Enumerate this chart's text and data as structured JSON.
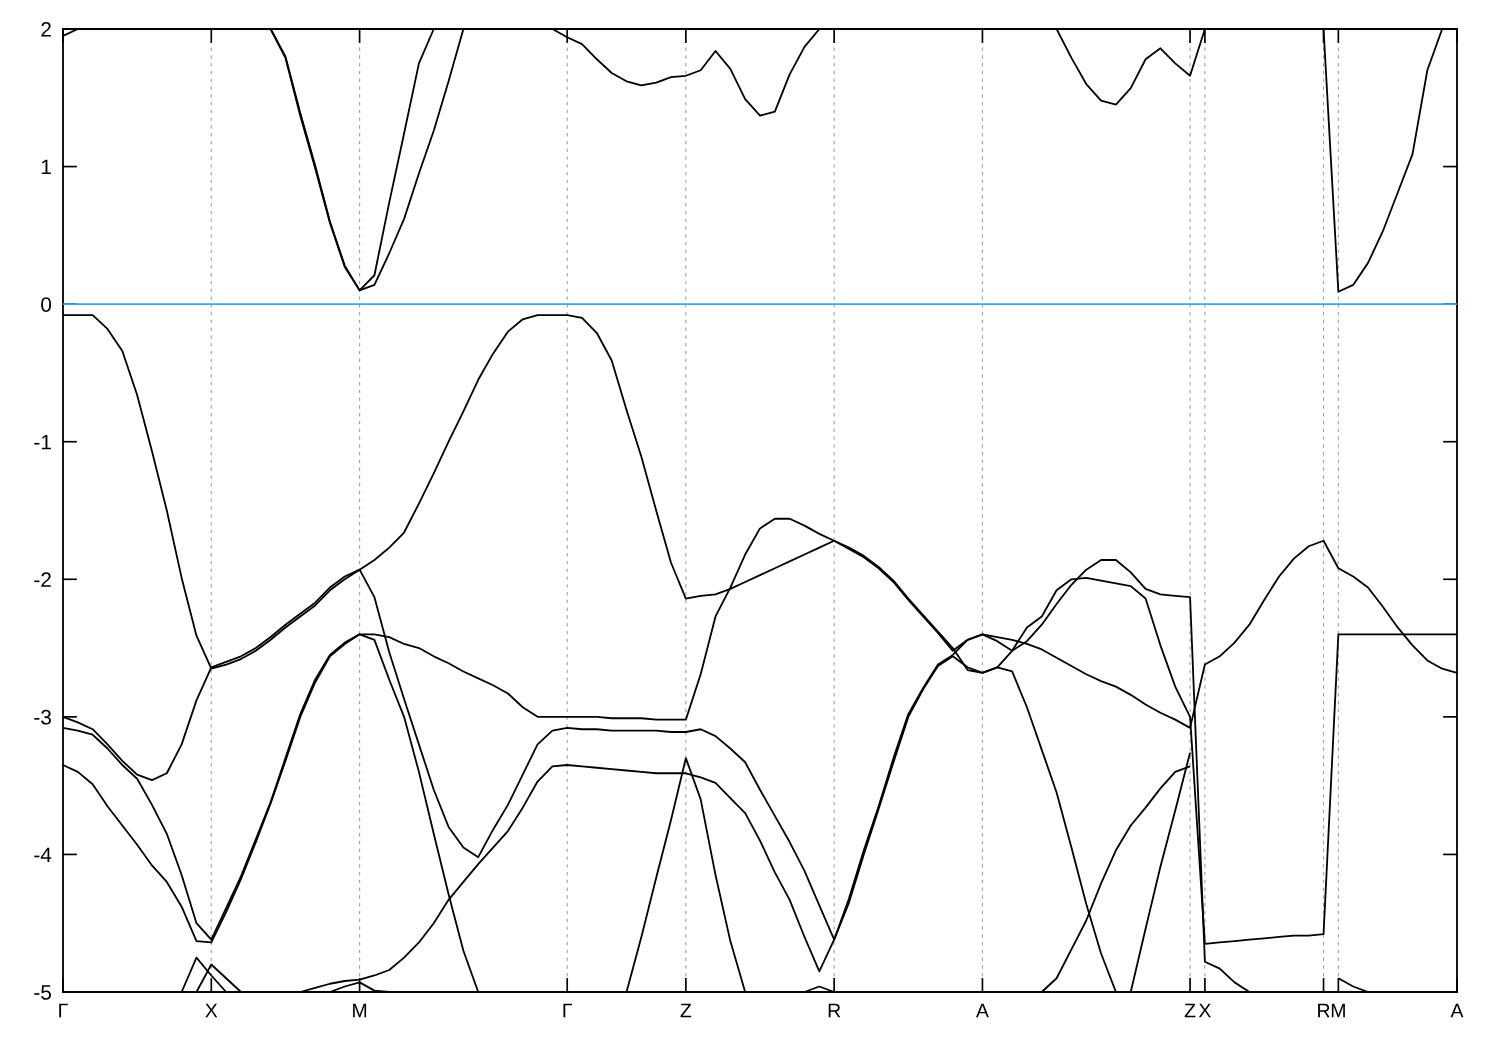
{
  "chart_data": {
    "type": "line",
    "ylim": [
      -5,
      2
    ],
    "yticks": [
      -5,
      -4,
      -3,
      -2,
      -1,
      0,
      1,
      2
    ],
    "categories": [
      "Γ",
      null,
      null,
      null,
      null,
      null,
      null,
      null,
      null,
      null,
      "X",
      null,
      null,
      null,
      null,
      null,
      null,
      null,
      null,
      null,
      "M",
      null,
      null,
      null,
      null,
      null,
      null,
      null,
      null,
      null,
      null,
      null,
      null,
      null,
      "Γ",
      null,
      null,
      null,
      null,
      null,
      null,
      null,
      "Z",
      null,
      null,
      null,
      null,
      null,
      null,
      null,
      null,
      null,
      "R",
      null,
      null,
      null,
      null,
      null,
      null,
      null,
      null,
      null,
      "A",
      null,
      null,
      null,
      null,
      null,
      null,
      null,
      null,
      null,
      null,
      null,
      null,
      null,
      "Z",
      "X",
      null,
      null,
      null,
      null,
      null,
      null,
      null,
      "R",
      "M",
      null,
      null,
      null,
      null,
      null,
      null,
      null,
      "A"
    ],
    "grid": "x",
    "line_style": "solid",
    "ref_lines": [
      {
        "axis": "y",
        "value": 0,
        "color": "#3ba7dd"
      }
    ],
    "series": [
      {
        "color": "#000000",
        "values": [
          -0.08,
          -0.08,
          -0.08,
          -0.18,
          -0.34,
          -0.66,
          -1.07,
          -1.5,
          -1.99,
          -2.41,
          -2.65,
          -2.62,
          -2.58,
          -2.52,
          -2.44,
          -2.35,
          -2.27,
          -2.19,
          -2.08,
          -2.0,
          -1.93,
          -1.86,
          -1.77,
          -1.66,
          -1.45,
          -1.23,
          -1.0,
          -0.78,
          -0.55,
          -0.36,
          -0.2,
          -0.11,
          -0.08,
          -0.08,
          -0.08,
          -0.1,
          -0.21,
          -0.41,
          -0.77,
          -1.11,
          -1.5,
          -1.88,
          -2.14,
          -2.12,
          -2.11,
          -2.07,
          -2.02,
          -1.97,
          -1.92,
          -1.87,
          -1.82,
          -1.77,
          -1.72,
          -1.78,
          -1.84,
          -1.92,
          -2.02,
          -2.15,
          -2.27,
          -2.39,
          -2.52,
          -2.44,
          -2.4,
          -2.42,
          -2.44,
          -2.47,
          -2.51,
          -2.57,
          -2.63,
          -2.69,
          -2.74,
          -2.78,
          -2.84,
          -2.91,
          -2.97,
          -3.02,
          -3.08,
          -2.62,
          -2.56,
          -2.46,
          -2.33,
          -2.15,
          -1.98,
          -1.85,
          -1.76,
          -1.72,
          -1.92,
          -1.98,
          -2.06,
          -2.2,
          -2.35,
          -2.48,
          -2.59,
          -2.65,
          -2.68
        ]
      },
      {
        "color": "#000000",
        "values": [
          -3.0,
          -3.04,
          -3.09,
          -3.2,
          -3.32,
          -3.42,
          -3.46,
          -3.41,
          -3.2,
          -2.88,
          -2.64,
          -2.6,
          -2.56,
          -2.5,
          -2.42,
          -2.33,
          -2.25,
          -2.17,
          -2.06,
          -1.98,
          -1.93,
          -2.13,
          -2.53,
          -2.87,
          -3.2,
          -3.53,
          -3.8,
          -3.95,
          -4.02,
          -3.82,
          -3.64,
          -3.42,
          -3.2,
          -3.1,
          -3.08,
          -3.09,
          -3.09,
          -3.1,
          -3.1,
          -3.1,
          -3.1,
          -3.11,
          -3.11,
          -3.09,
          -3.14,
          -3.23,
          -3.33,
          -3.53,
          -3.72,
          -3.91,
          -4.12,
          -4.37,
          -4.62,
          -4.35,
          -4.0,
          -3.67,
          -3.33,
          -3.0,
          -2.8,
          -2.63,
          -2.56,
          -2.64,
          -2.68,
          -2.64,
          -2.67,
          -2.93,
          -3.24,
          -3.55,
          -3.95,
          -4.36,
          -4.72,
          -5,
          null,
          null,
          null,
          null,
          null,
          null,
          null,
          null,
          null,
          null,
          null,
          null,
          null,
          null,
          null,
          null,
          null,
          null,
          null,
          null,
          null,
          null,
          null
        ]
      },
      {
        "color": "#000000",
        "values": [
          -3.08,
          -3.1,
          -3.13,
          -3.23,
          -3.35,
          -3.45,
          -3.64,
          -3.85,
          -4.15,
          -4.5,
          -4.62,
          -4.39,
          -4.16,
          -3.89,
          -3.62,
          -3.3,
          -2.98,
          -2.73,
          -2.55,
          -2.46,
          -2.4,
          -2.4,
          -2.42,
          -2.47,
          -2.5,
          -2.56,
          -2.61,
          -2.67,
          -2.72,
          -2.77,
          -2.83,
          -2.93,
          -3.0,
          -3.0,
          -3.0,
          -3.0,
          -3.0,
          -3.01,
          -3.01,
          -3.01,
          -3.02,
          -3.02,
          -3.02,
          -2.69,
          -2.27,
          -2.06,
          -1.82,
          -1.63,
          -1.56,
          -1.56,
          -1.61,
          -1.67,
          -1.72,
          -1.77,
          -1.83,
          -1.91,
          -2.01,
          -2.14,
          -2.26,
          -2.38,
          -2.5,
          -2.66,
          -2.68,
          -2.64,
          -2.52,
          -2.35,
          -2.27,
          -2.08,
          -2.0,
          -1.99,
          -2.01,
          -2.03,
          -2.05,
          -2.14,
          -2.48,
          -2.78,
          -3.0,
          -4.65,
          -4.64,
          -4.63,
          -4.62,
          -4.61,
          -4.6,
          -4.59,
          -4.59,
          -4.58,
          -2.4,
          -2.4,
          -2.4,
          -2.4,
          -2.4,
          -2.4,
          -2.4,
          -2.4,
          -2.4
        ]
      },
      {
        "color": "#000000",
        "values": [
          -3.35,
          -3.4,
          -3.49,
          -3.65,
          -3.79,
          -3.93,
          -4.08,
          -4.2,
          -4.38,
          -4.63,
          -4.64,
          -4.42,
          -4.18,
          -3.91,
          -3.63,
          -3.32,
          -3.0,
          -2.75,
          -2.56,
          -2.47,
          -2.4,
          -2.44,
          -2.73,
          -3.0,
          -3.4,
          -3.85,
          -4.29,
          -4.7,
          -5,
          null,
          null,
          null,
          null,
          null,
          null,
          null,
          null,
          null,
          null,
          null,
          null,
          null,
          null,
          null,
          null,
          null,
          null,
          null,
          null,
          null,
          null,
          null,
          null,
          null,
          null,
          null,
          null,
          null,
          null,
          null,
          null,
          null,
          null,
          null,
          null,
          null,
          null,
          null,
          null,
          null,
          null,
          null,
          null,
          null,
          null,
          null,
          null,
          null,
          null,
          null,
          null,
          null,
          null,
          null,
          null,
          null,
          null,
          null,
          null,
          null,
          null,
          null,
          null,
          null,
          null
        ]
      },
      {
        "color": "#000000",
        "values": [
          null,
          null,
          null,
          null,
          null,
          null,
          null,
          null,
          null,
          null,
          null,
          null,
          null,
          null,
          null,
          null,
          -5,
          -4.97,
          -4.94,
          -4.92,
          -4.91,
          -4.88,
          -4.84,
          -4.75,
          -4.64,
          -4.5,
          -4.33,
          -4.2,
          -4.07,
          -3.95,
          -3.83,
          -3.66,
          -3.47,
          -3.36,
          -3.35,
          -3.36,
          -3.37,
          -3.38,
          -3.39,
          -3.4,
          -3.41,
          -3.41,
          -3.41,
          -3.44,
          -3.48,
          -3.59,
          -3.7,
          -3.9,
          -4.13,
          -4.33,
          -4.6,
          -4.85,
          -4.62,
          -4.32,
          -3.97,
          -3.65,
          -3.3,
          -2.98,
          -2.79,
          -2.62,
          -2.55,
          -2.44,
          -2.4,
          -2.45,
          -2.52,
          -2.45,
          -2.33,
          -2.18,
          -2.04,
          -1.93,
          -1.86,
          -1.86,
          -1.95,
          -2.07,
          -2.11,
          -2.12,
          -2.13,
          -4.78,
          -4.83,
          -4.93,
          -5,
          null,
          null,
          null,
          null,
          null,
          null,
          null,
          null,
          null,
          null,
          null,
          null,
          null,
          null
        ]
      },
      {
        "color": "#000000",
        "values": [
          null,
          null,
          null,
          null,
          null,
          null,
          null,
          null,
          -5,
          -4.75,
          -4.88,
          -5,
          null,
          null,
          null,
          null,
          null,
          null,
          -5,
          -4.96,
          -4.93,
          -4.99,
          -5,
          null,
          null,
          null,
          null,
          null,
          null,
          null,
          null,
          null,
          null,
          null,
          null,
          null,
          null,
          null,
          -5,
          -4.6,
          -4.17,
          -3.75,
          -3.3,
          -3.6,
          -4.15,
          -4.63,
          -5,
          null,
          null,
          null,
          -5,
          -4.96,
          -5,
          null,
          null,
          null,
          null,
          null,
          null,
          null,
          null,
          null,
          null,
          null,
          null,
          null,
          -5,
          -4.9,
          -4.69,
          -4.48,
          -4.21,
          -3.97,
          -3.79,
          -3.66,
          -3.52,
          -3.4,
          -3.36,
          null,
          null,
          null,
          null,
          null,
          null,
          null,
          null,
          null,
          -4.9,
          -4.96,
          -5,
          null,
          null,
          null,
          null,
          null,
          null
        ]
      },
      {
        "color": "#000000",
        "values": [
          null,
          null,
          null,
          null,
          null,
          null,
          null,
          null,
          null,
          -5,
          -4.8,
          -4.9,
          -5,
          null,
          null,
          null,
          null,
          null,
          null,
          null,
          null,
          null,
          null,
          null,
          null,
          null,
          null,
          null,
          null,
          null,
          null,
          null,
          null,
          null,
          null,
          null,
          null,
          null,
          null,
          null,
          null,
          null,
          null,
          null,
          null,
          null,
          null,
          null,
          null,
          null,
          null,
          null,
          null,
          null,
          null,
          null,
          null,
          null,
          null,
          null,
          null,
          null,
          null,
          null,
          null,
          null,
          null,
          null,
          null,
          null,
          null,
          null,
          -5,
          -4.54,
          -4.09,
          -3.68,
          -3.26,
          null,
          null,
          null,
          null,
          null,
          null,
          null,
          null,
          null,
          null,
          null,
          null,
          null,
          null,
          null,
          null,
          null,
          null
        ]
      },
      {
        "color": "#000000",
        "values": [
          1.95,
          2,
          null,
          null,
          null,
          null,
          null,
          null,
          null,
          null,
          null,
          null,
          null,
          null,
          null,
          null,
          null,
          null,
          null,
          null,
          null,
          null,
          null,
          null,
          null,
          null,
          null,
          null,
          null,
          null,
          null,
          null,
          null,
          null,
          null,
          null,
          null,
          null,
          null,
          null,
          null,
          null,
          null,
          null,
          null,
          null,
          null,
          null,
          null,
          null,
          null,
          null,
          null,
          null,
          null,
          null,
          null,
          null,
          null,
          null,
          null,
          null,
          null,
          null,
          null,
          null,
          null,
          null,
          null,
          null,
          null,
          null,
          null,
          null,
          null,
          null,
          null,
          null,
          null,
          null,
          null,
          null,
          null,
          null,
          null,
          null,
          null,
          null,
          null,
          null,
          null,
          null,
          null,
          null,
          null
        ]
      },
      {
        "color": "#000000",
        "values": [
          null,
          null,
          null,
          null,
          null,
          null,
          null,
          null,
          null,
          null,
          null,
          null,
          null,
          null,
          2,
          1.79,
          1.37,
          0.99,
          0.59,
          0.27,
          0.1,
          0.21,
          0.74,
          1.24,
          1.75,
          2,
          null,
          null,
          null,
          null,
          null,
          null,
          null,
          2,
          1.94,
          1.89,
          1.78,
          1.68,
          1.62,
          1.59,
          1.61,
          1.65,
          1.66,
          1.7,
          1.84,
          1.71,
          1.49,
          1.37,
          1.4,
          1.67,
          1.87,
          2,
          null,
          null,
          null,
          null,
          null,
          null,
          null,
          null,
          null,
          null,
          null,
          null,
          null,
          null,
          null,
          2,
          1.79,
          1.6,
          1.48,
          1.45,
          1.57,
          1.78,
          1.86,
          1.75,
          1.66,
          2,
          null,
          null,
          null,
          null,
          null,
          null,
          null,
          2,
          0.09,
          0.14,
          0.3,
          0.53,
          0.81,
          1.09,
          1.7,
          2,
          null
        ]
      },
      {
        "color": "#000000",
        "values": [
          null,
          null,
          null,
          null,
          null,
          null,
          null,
          null,
          null,
          null,
          null,
          null,
          null,
          null,
          2,
          1.8,
          1.39,
          1.01,
          0.6,
          0.28,
          0.1,
          0.14,
          0.37,
          0.62,
          0.95,
          1.26,
          1.62,
          2,
          null,
          null,
          null,
          null,
          null,
          null,
          null,
          null,
          null,
          null,
          null,
          null,
          null,
          null,
          null,
          null,
          null,
          null,
          null,
          null,
          null,
          null,
          null,
          null,
          null,
          null,
          null,
          null,
          null,
          null,
          null,
          null,
          null,
          null,
          null,
          null,
          null,
          null,
          null,
          null,
          null,
          null,
          null,
          null,
          null,
          null,
          null,
          null,
          null,
          null,
          null,
          null,
          null,
          null,
          null,
          null,
          null,
          null,
          null,
          null,
          null,
          null,
          null,
          null,
          null,
          null,
          null
        ]
      }
    ]
  }
}
